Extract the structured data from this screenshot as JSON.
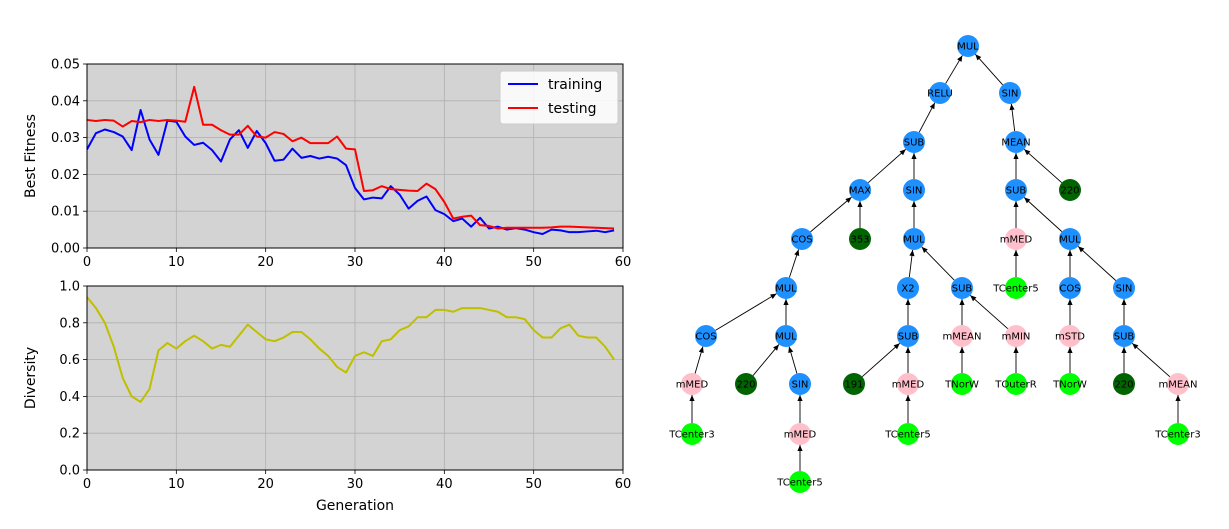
{
  "chart_data": [
    {
      "type": "line",
      "xlabel": "",
      "ylabel": "Best Fitness",
      "xlim": [
        0,
        60
      ],
      "ylim": [
        0,
        0.05
      ],
      "xticks": [
        "0",
        "10",
        "20",
        "30",
        "40",
        "50",
        "60"
      ],
      "yticks": [
        "0.00",
        "0.01",
        "0.02",
        "0.03",
        "0.04",
        "0.05"
      ],
      "grid": true,
      "legend_position": "top-right",
      "x": [
        0,
        1,
        2,
        3,
        4,
        5,
        6,
        7,
        8,
        9,
        10,
        11,
        12,
        13,
        14,
        15,
        16,
        17,
        18,
        19,
        20,
        21,
        22,
        23,
        24,
        25,
        26,
        27,
        28,
        29,
        30,
        31,
        32,
        33,
        34,
        35,
        36,
        37,
        38,
        39,
        40,
        41,
        42,
        43,
        44,
        45,
        46,
        47,
        48,
        49,
        50,
        51,
        52,
        53,
        54,
        55,
        56,
        57,
        58,
        59
      ],
      "series": [
        {
          "name": "training",
          "color": "#0000ff",
          "values": [
            0.0268,
            0.0312,
            0.0322,
            0.0315,
            0.0303,
            0.0266,
            0.0375,
            0.0295,
            0.0253,
            0.0346,
            0.0343,
            0.0303,
            0.028,
            0.0286,
            0.0266,
            0.0235,
            0.0295,
            0.032,
            0.0272,
            0.0318,
            0.0285,
            0.0237,
            0.024,
            0.027,
            0.0245,
            0.025,
            0.0243,
            0.0248,
            0.0243,
            0.0225,
            0.0163,
            0.0132,
            0.0137,
            0.0135,
            0.0168,
            0.0145,
            0.0107,
            0.0128,
            0.014,
            0.0103,
            0.0092,
            0.0073,
            0.008,
            0.0058,
            0.0082,
            0.0053,
            0.0058,
            0.005,
            0.0054,
            0.005,
            0.0043,
            0.0038,
            0.005,
            0.0048,
            0.0043,
            0.0043,
            0.0045,
            0.0047,
            0.0043,
            0.0048
          ]
        },
        {
          "name": "testing",
          "color": "#ff0000",
          "values": [
            0.0348,
            0.0345,
            0.0348,
            0.0346,
            0.033,
            0.0345,
            0.0342,
            0.0348,
            0.0345,
            0.0348,
            0.0346,
            0.0343,
            0.0438,
            0.0335,
            0.0335,
            0.032,
            0.0308,
            0.0308,
            0.0332,
            0.0303,
            0.03,
            0.0315,
            0.031,
            0.029,
            0.03,
            0.0285,
            0.0285,
            0.0285,
            0.0303,
            0.027,
            0.0268,
            0.0155,
            0.0157,
            0.0168,
            0.016,
            0.0158,
            0.0156,
            0.0155,
            0.0175,
            0.016,
            0.0125,
            0.008,
            0.0085,
            0.0088,
            0.0062,
            0.006,
            0.0053,
            0.0055,
            0.0055,
            0.0055,
            0.0055,
            0.0055,
            0.0056,
            0.0058,
            0.0058,
            0.0057,
            0.0056,
            0.0055,
            0.0054,
            0.0053
          ]
        }
      ]
    },
    {
      "type": "line",
      "xlabel": "Generation",
      "ylabel": "Diversity",
      "xlim": [
        0,
        60
      ],
      "ylim": [
        0,
        1.0
      ],
      "xticks": [
        "0",
        "10",
        "20",
        "30",
        "40",
        "50",
        "60"
      ],
      "yticks": [
        "0.0",
        "0.2",
        "0.4",
        "0.6",
        "0.8",
        "1.0"
      ],
      "grid": true,
      "x": [
        0,
        1,
        2,
        3,
        4,
        5,
        6,
        7,
        8,
        9,
        10,
        11,
        12,
        13,
        14,
        15,
        16,
        17,
        18,
        19,
        20,
        21,
        22,
        23,
        24,
        25,
        26,
        27,
        28,
        29,
        30,
        31,
        32,
        33,
        34,
        35,
        36,
        37,
        38,
        39,
        40,
        41,
        42,
        43,
        44,
        45,
        46,
        47,
        48,
        49,
        50,
        51,
        52,
        53,
        54,
        55,
        56,
        57,
        58,
        59
      ],
      "series": [
        {
          "color": "#bfbf00",
          "values": [
            0.94,
            0.88,
            0.8,
            0.67,
            0.5,
            0.4,
            0.37,
            0.44,
            0.65,
            0.69,
            0.66,
            0.7,
            0.73,
            0.7,
            0.66,
            0.68,
            0.67,
            0.73,
            0.79,
            0.75,
            0.71,
            0.7,
            0.72,
            0.75,
            0.75,
            0.71,
            0.66,
            0.62,
            0.56,
            0.53,
            0.62,
            0.64,
            0.62,
            0.7,
            0.71,
            0.76,
            0.78,
            0.83,
            0.83,
            0.87,
            0.87,
            0.86,
            0.88,
            0.88,
            0.88,
            0.87,
            0.86,
            0.83,
            0.83,
            0.82,
            0.76,
            0.72,
            0.72,
            0.77,
            0.79,
            0.73,
            0.72,
            0.72,
            0.67,
            0.6
          ]
        }
      ]
    },
    {
      "type": "tree",
      "colors": {
        "function": "#1e90ff",
        "aggregate": "#ffc0cb",
        "terminal": "#00ff00",
        "constant": "#006400"
      },
      "nodes": [
        {
          "id": "n0",
          "label": "MUL",
          "kind": "function"
        },
        {
          "id": "n1",
          "label": "RELU",
          "kind": "function",
          "parent": "n0"
        },
        {
          "id": "n2",
          "label": "SIN",
          "kind": "function",
          "parent": "n0"
        },
        {
          "id": "n3",
          "label": "SUB",
          "kind": "function",
          "parent": "n1"
        },
        {
          "id": "n4",
          "label": "MEAN",
          "kind": "function",
          "parent": "n2"
        },
        {
          "id": "n5",
          "label": "MAX",
          "kind": "function",
          "parent": "n3"
        },
        {
          "id": "n6",
          "label": "SIN",
          "kind": "function",
          "parent": "n3"
        },
        {
          "id": "n7",
          "label": "SUB",
          "kind": "function",
          "parent": "n4"
        },
        {
          "id": "n8",
          "label": "220",
          "kind": "constant",
          "parent": "n4"
        },
        {
          "id": "n9",
          "label": "COS",
          "kind": "function",
          "parent": "n5"
        },
        {
          "id": "n10",
          "label": "353",
          "kind": "constant",
          "parent": "n5"
        },
        {
          "id": "n11",
          "label": "MUL",
          "kind": "function",
          "parent": "n6"
        },
        {
          "id": "n12",
          "label": "mMED",
          "kind": "aggregate",
          "parent": "n7"
        },
        {
          "id": "n13",
          "label": "MUL",
          "kind": "function",
          "parent": "n7"
        },
        {
          "id": "n14",
          "label": "MUL",
          "kind": "function",
          "parent": "n9"
        },
        {
          "id": "n15",
          "label": "X2",
          "kind": "function",
          "parent": "n11"
        },
        {
          "id": "n16",
          "label": "SUB",
          "kind": "function",
          "parent": "n11"
        },
        {
          "id": "n17",
          "label": "TCenter5",
          "kind": "terminal",
          "parent": "n12"
        },
        {
          "id": "n18",
          "label": "COS",
          "kind": "function",
          "parent": "n13"
        },
        {
          "id": "n19",
          "label": "SIN",
          "kind": "function",
          "parent": "n13"
        },
        {
          "id": "n20",
          "label": "COS",
          "kind": "function",
          "parent": "n14"
        },
        {
          "id": "n21",
          "label": "MUL",
          "kind": "function",
          "parent": "n14"
        },
        {
          "id": "n22",
          "label": "SUB",
          "kind": "function",
          "parent": "n15"
        },
        {
          "id": "n23",
          "label": "mMEAN",
          "kind": "aggregate",
          "parent": "n16"
        },
        {
          "id": "n24",
          "label": "mMIN",
          "kind": "aggregate",
          "parent": "n16"
        },
        {
          "id": "n25",
          "label": "mSTD",
          "kind": "aggregate",
          "parent": "n18"
        },
        {
          "id": "n26",
          "label": "SUB",
          "kind": "function",
          "parent": "n19"
        },
        {
          "id": "n27",
          "label": "mMED",
          "kind": "aggregate",
          "parent": "n20"
        },
        {
          "id": "n28",
          "label": "220",
          "kind": "constant",
          "parent": "n21"
        },
        {
          "id": "n29",
          "label": "SIN",
          "kind": "function",
          "parent": "n21"
        },
        {
          "id": "n30",
          "label": "191",
          "kind": "constant",
          "parent": "n22"
        },
        {
          "id": "n31",
          "label": "mMED",
          "kind": "aggregate",
          "parent": "n22"
        },
        {
          "id": "n32",
          "label": "TNorW",
          "kind": "terminal",
          "parent": "n23"
        },
        {
          "id": "n33",
          "label": "TOuterR",
          "kind": "terminal",
          "parent": "n24"
        },
        {
          "id": "n34",
          "label": "TNorW",
          "kind": "terminal",
          "parent": "n25"
        },
        {
          "id": "n35",
          "label": "220",
          "kind": "constant",
          "parent": "n26"
        },
        {
          "id": "n36",
          "label": "mMEAN",
          "kind": "aggregate",
          "parent": "n26"
        },
        {
          "id": "n37",
          "label": "TCenter3",
          "kind": "terminal",
          "parent": "n27"
        },
        {
          "id": "n38",
          "label": "mMED",
          "kind": "aggregate",
          "parent": "n29"
        },
        {
          "id": "n39",
          "label": "TCenter5",
          "kind": "terminal",
          "parent": "n31"
        },
        {
          "id": "n40",
          "label": "TCenter3",
          "kind": "terminal",
          "parent": "n36"
        },
        {
          "id": "n41",
          "label": "TCenter5",
          "kind": "terminal",
          "parent": "n38"
        }
      ]
    }
  ]
}
